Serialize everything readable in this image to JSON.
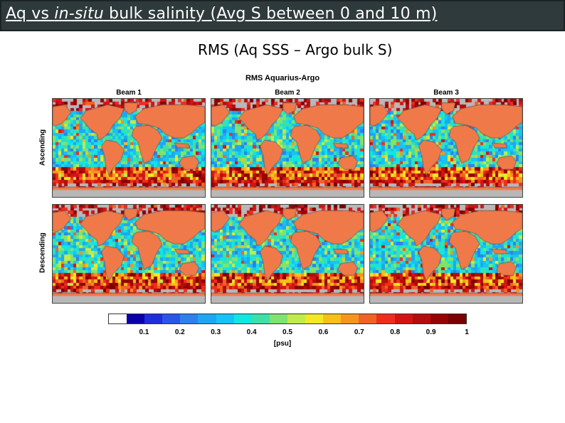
{
  "header": {
    "title_parts": [
      "Aq vs ",
      "in-situ",
      " bulk salinity (Avg S between 0 and 10 m)"
    ],
    "subtitle": "RMS (Aq SSS – Argo bulk S)"
  },
  "chart_data": {
    "type": "heatmap",
    "title": "RMS Aquarius-Argo",
    "columns": [
      "Beam 1",
      "Beam 2",
      "Beam 3"
    ],
    "rows": [
      "Ascending",
      "Descending"
    ],
    "colorbar": {
      "ticks": [
        "0.1",
        "0.2",
        "0.3",
        "0.4",
        "0.5",
        "0.6",
        "0.7",
        "0.8",
        "0.9",
        "1"
      ],
      "range": [
        0,
        1
      ],
      "unit": "[psu]",
      "colors": [
        "#ffffff",
        "#0a00a8",
        "#1f2ed8",
        "#2b55e6",
        "#2f7fec",
        "#1ea6f2",
        "#16c3f4",
        "#12e6e0",
        "#3ee0a9",
        "#7fe36e",
        "#c1eb4a",
        "#f4e724",
        "#f7bf18",
        "#f59520",
        "#ef6424",
        "#ee2d1e",
        "#d31414",
        "#b30d0d",
        "#960404",
        "#7a0000"
      ]
    },
    "land_color": "#f0794a",
    "no_data_color": "#b8b8b8"
  }
}
